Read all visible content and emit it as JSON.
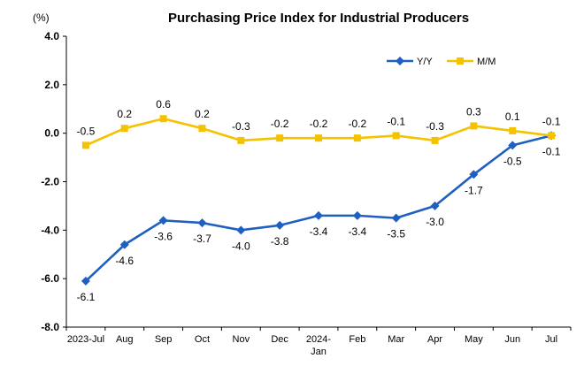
{
  "chart_data": {
    "type": "line",
    "title": "Purchasing Price Index for Industrial Producers",
    "unit_label": "(%)",
    "categories": [
      "2023-Jul",
      "Aug",
      "Sep",
      "Oct",
      "Nov",
      "Dec",
      "2024-Jan",
      "Feb",
      "Mar",
      "Apr",
      "May",
      "Jun",
      "Jul"
    ],
    "category_lines": [
      [
        "2023-Jul"
      ],
      [
        "Aug"
      ],
      [
        "Sep"
      ],
      [
        "Oct"
      ],
      [
        "Nov"
      ],
      [
        "Dec"
      ],
      [
        "2024-",
        "Jan"
      ],
      [
        "Feb"
      ],
      [
        "Mar"
      ],
      [
        "Apr"
      ],
      [
        "May"
      ],
      [
        "Jun"
      ],
      [
        "Jul"
      ]
    ],
    "series": [
      {
        "name": "Y/Y",
        "color": "#1f5fbf",
        "marker": "diamond",
        "label_position": "below",
        "values": [
          -6.1,
          -4.6,
          -3.6,
          -3.7,
          -4.0,
          -3.8,
          -3.4,
          -3.4,
          -3.5,
          -3.0,
          -1.7,
          -0.5,
          -0.1
        ]
      },
      {
        "name": "M/M",
        "color": "#f5c200",
        "marker": "square",
        "label_position": "above",
        "values": [
          -0.5,
          0.2,
          0.6,
          0.2,
          -0.3,
          -0.2,
          -0.2,
          -0.2,
          -0.1,
          -0.3,
          0.3,
          0.1,
          -0.1
        ]
      }
    ],
    "y_ticks": [
      "4.0",
      "2.0",
      "0.0",
      "-2.0",
      "-4.0",
      "-6.0",
      "-8.0"
    ],
    "ylim": [
      -8.0,
      4.0
    ],
    "ystep": 2.0,
    "grid": false,
    "legend_position": "top-right"
  }
}
